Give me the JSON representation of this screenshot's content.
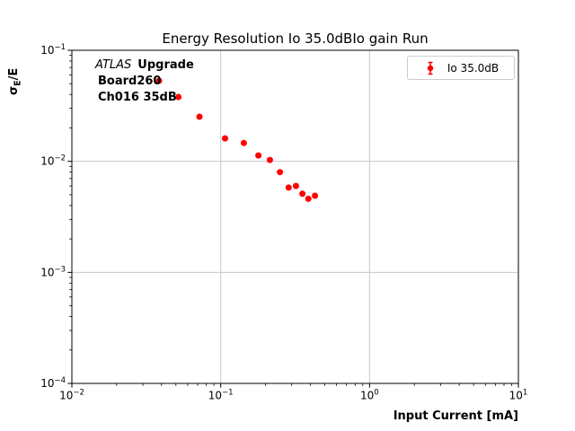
{
  "chart_data": {
    "type": "scatter",
    "title": "Energy Resolution Io 35.0dBIo gain Run",
    "xlabel": "Input Current [mA]",
    "ylabel": "σ_E/E",
    "ylabel_parts": {
      "sigma": "σ",
      "sub": "E",
      "rest": "/E"
    },
    "xscale": "log",
    "yscale": "log",
    "xlim": [
      0.01,
      10
    ],
    "ylim": [
      0.0001,
      0.1
    ],
    "grid": true,
    "grid_color": "#c8c8c8",
    "axis_color": "#000000",
    "legend": {
      "position": "upper right",
      "entries": [
        {
          "label": "Io 35.0dB",
          "marker": "errorbar-dot",
          "color": "#ff0000"
        }
      ]
    },
    "annotation": {
      "experiment": "ATLAS",
      "tag": "Upgrade",
      "line2": "Board260",
      "line3": "Ch016 35dB"
    },
    "series": [
      {
        "name": "Io 35.0dB",
        "color": "#ff0000",
        "marker": "circle",
        "marker_radius": 3.5,
        "x": [
          0.0385,
          0.052,
          0.072,
          0.107,
          0.143,
          0.179,
          0.214,
          0.25,
          0.286,
          0.32,
          0.354,
          0.388,
          0.43
        ],
        "y": [
          0.0531,
          0.038,
          0.0252,
          0.0161,
          0.0146,
          0.0113,
          0.0103,
          0.008,
          0.0058,
          0.006,
          0.0051,
          0.0046,
          0.0049
        ]
      }
    ]
  }
}
